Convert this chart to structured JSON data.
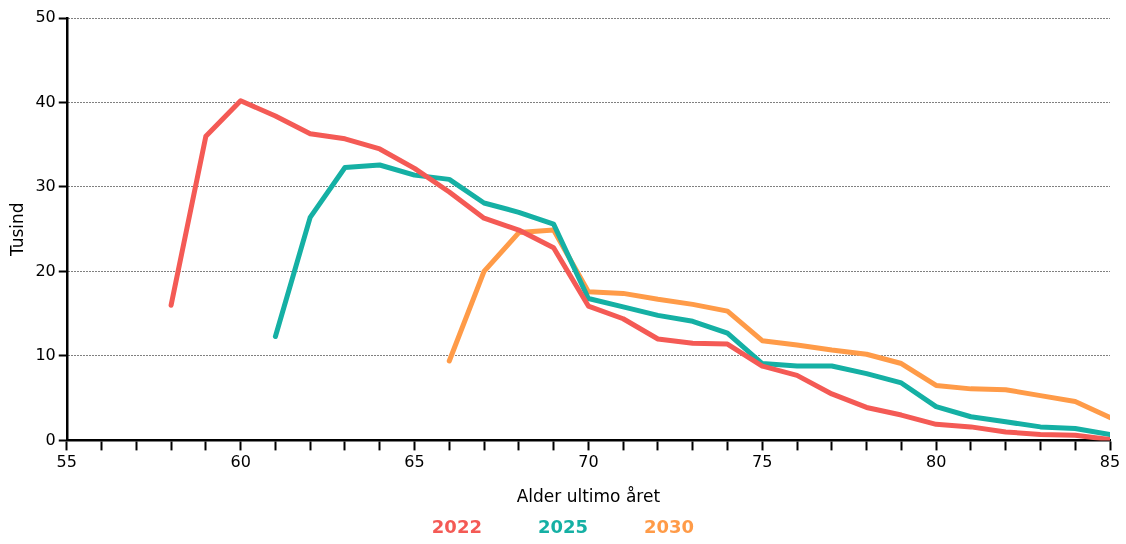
{
  "chart_data": {
    "type": "line",
    "xlabel": "Alder ultimo året",
    "ylabel": "Tusind",
    "xlim": [
      55,
      85
    ],
    "ylim": [
      0,
      50
    ],
    "xticks": [
      55,
      {
        "value": 56,
        "label": null
      },
      {
        "value": 57,
        "label": null
      },
      {
        "value": 58,
        "label": null
      },
      {
        "value": 59,
        "label": null
      },
      60,
      {
        "value": 61,
        "label": null
      },
      {
        "value": 62,
        "label": null
      },
      {
        "value": 63,
        "label": null
      },
      {
        "value": 64,
        "label": null
      },
      65,
      {
        "value": 66,
        "label": null
      },
      {
        "value": 67,
        "label": null
      },
      {
        "value": 68,
        "label": null
      },
      {
        "value": 69,
        "label": null
      },
      70,
      {
        "value": 71,
        "label": null
      },
      {
        "value": 72,
        "label": null
      },
      {
        "value": 73,
        "label": null
      },
      {
        "value": 74,
        "label": null
      },
      75,
      {
        "value": 76,
        "label": null
      },
      {
        "value": 77,
        "label": null
      },
      {
        "value": 78,
        "label": null
      },
      {
        "value": 79,
        "label": null
      },
      80,
      {
        "value": 81,
        "label": null
      },
      {
        "value": 82,
        "label": null
      },
      {
        "value": 83,
        "label": null
      },
      {
        "value": 84,
        "label": null
      },
      85
    ],
    "yticks": [
      0,
      10,
      20,
      30,
      40,
      50
    ],
    "grid": "y",
    "legend": "bottom",
    "marker": "none",
    "line_style": "solid",
    "series": [
      {
        "name": "2022",
        "color": "#f45a55",
        "x": [
          58,
          59,
          60,
          61,
          62,
          63,
          64,
          65,
          66,
          67,
          68,
          69,
          70,
          71,
          72,
          73,
          74,
          75,
          76,
          77,
          78,
          79,
          80,
          81,
          82,
          83,
          84,
          85
        ],
        "values": [
          16,
          36,
          40.2,
          38.4,
          36.3,
          35.7,
          34.5,
          32.2,
          29.4,
          26.3,
          24.9,
          22.8,
          15.9,
          14.4,
          12,
          11.5,
          11.4,
          8.8,
          7.7,
          5.5,
          3.9,
          3,
          1.9,
          1.6,
          1,
          0.7,
          0.6,
          0.1
        ]
      },
      {
        "name": "2025",
        "color": "#15b0a4",
        "x": [
          61,
          62,
          63,
          64,
          65,
          66,
          67,
          68,
          69,
          70,
          71,
          72,
          73,
          74,
          75,
          76,
          77,
          78,
          79,
          80,
          81,
          82,
          83,
          84,
          85
        ],
        "values": [
          12.3,
          26.4,
          32.3,
          32.6,
          31.4,
          30.9,
          28.1,
          27,
          25.6,
          16.8,
          15.8,
          14.8,
          14.1,
          12.7,
          9.1,
          8.8,
          8.8,
          7.9,
          6.8,
          4,
          2.8,
          2.2,
          1.6,
          1.4,
          0.7
        ]
      },
      {
        "name": "2030",
        "color": "#ff9b48",
        "x": [
          66,
          67,
          68,
          69,
          70,
          71,
          72,
          73,
          74,
          75,
          76,
          77,
          78,
          79,
          80,
          81,
          82,
          83,
          84,
          85
        ],
        "values": [
          9.4,
          20,
          24.6,
          24.9,
          17.6,
          17.4,
          16.7,
          16.1,
          15.3,
          11.8,
          11.3,
          10.7,
          10.2,
          9.1,
          6.5,
          6.1,
          6,
          5.3,
          4.6,
          2.7
        ]
      }
    ]
  }
}
